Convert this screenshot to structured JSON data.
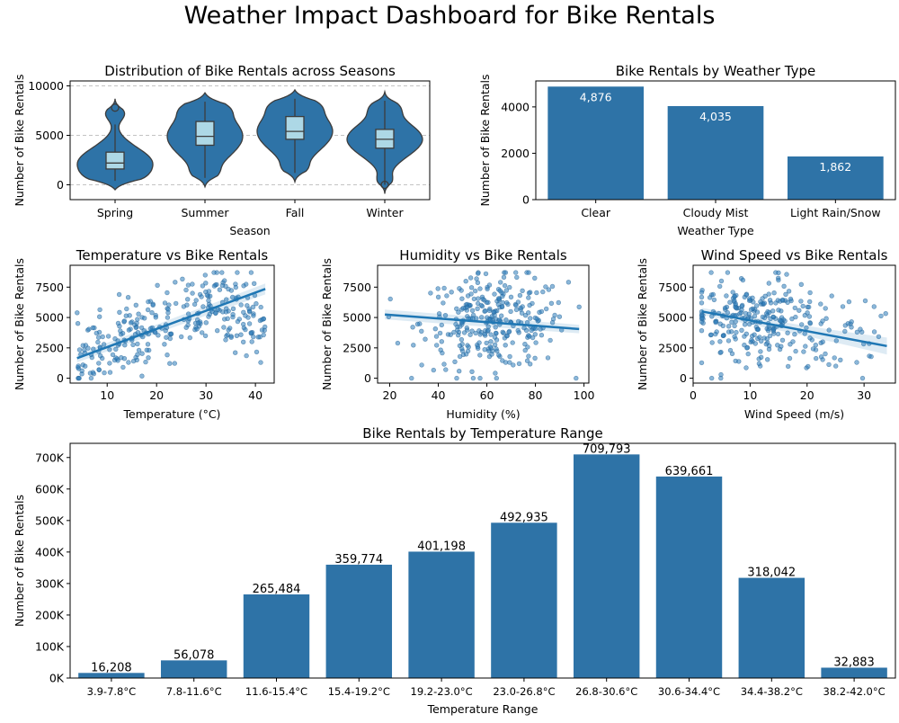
{
  "title": "Weather Impact Dashboard for Bike Rentals",
  "chart_data": [
    {
      "id": "seasons",
      "type": "violin",
      "title": "Distribution of Bike Rentals across Seasons",
      "xlabel": "Season",
      "ylabel": "Number of Bike Rentals",
      "categories": [
        "Spring",
        "Summer",
        "Fall",
        "Winter"
      ],
      "ylim": [
        -1500,
        10500
      ],
      "yticks": [
        0,
        5000,
        10000
      ],
      "grid": "y-dashed",
      "distributions": [
        {
          "name": "Spring",
          "min": 400,
          "q1": 1600,
          "median": 2200,
          "q3": 3300,
          "max": 7800,
          "whisker_high": 6100,
          "outliers": [
            7800
          ]
        },
        {
          "name": "Summer",
          "min": 700,
          "q1": 4000,
          "median": 4900,
          "q3": 6400,
          "max": 8400,
          "whisker_high": 8400,
          "outliers": []
        },
        {
          "name": "Fall",
          "min": 1200,
          "q1": 4600,
          "median": 5400,
          "q3": 6900,
          "max": 8700,
          "whisker_high": 8700,
          "outliers": []
        },
        {
          "name": "Winter",
          "min": 0,
          "q1": 3700,
          "median": 4600,
          "q3": 5600,
          "max": 8500,
          "whisker_high": 8500,
          "outliers": [
            0
          ]
        }
      ]
    },
    {
      "id": "weather",
      "type": "bar",
      "title": "Bike Rentals by Weather Type",
      "xlabel": "Weather Type",
      "ylabel": "Number of Bike Rentals",
      "categories": [
        "Clear",
        "Cloudy Mist",
        "Light Rain/Snow"
      ],
      "values": [
        4876,
        4035,
        1862
      ],
      "data_labels": [
        "4,876",
        "4,035",
        "1,862"
      ],
      "ylim": [
        0,
        5120
      ],
      "yticks": [
        0,
        2000,
        4000
      ]
    },
    {
      "id": "temperature",
      "type": "scatter",
      "title": "Temperature vs Bike Rentals",
      "xlabel": "Temperature (°C)",
      "ylabel": "Number of Bike Rentals",
      "xlim": [
        2.5,
        43.8
      ],
      "ylim": [
        -400,
        9300
      ],
      "xticks": [
        10,
        20,
        30,
        40
      ],
      "yticks": [
        0,
        2500,
        5000,
        7500
      ],
      "regression": {
        "x": [
          3.9,
          42.0
        ],
        "y": [
          1650,
          7350
        ],
        "ci_halfwidth": [
          350,
          450
        ]
      },
      "point_cloud": {
        "count": 300,
        "x_range": [
          3.9,
          42.0
        ],
        "y_range": [
          0,
          8700
        ],
        "shape": "rising",
        "peak": 31
      }
    },
    {
      "id": "humidity",
      "type": "scatter",
      "title": "Humidity vs Bike Rentals",
      "xlabel": "Humidity (%)",
      "ylabel": "Number of Bike Rentals",
      "xlim": [
        15,
        102
      ],
      "ylim": [
        -400,
        9300
      ],
      "xticks": [
        20,
        40,
        60,
        80,
        100
      ],
      "yticks": [
        0,
        2500,
        5000,
        7500
      ],
      "regression": {
        "x": [
          18,
          98
        ],
        "y": [
          5250,
          4050
        ],
        "ci_halfwidth": [
          400,
          350
        ]
      },
      "point_cloud": {
        "count": 300,
        "x_range": [
          18,
          98
        ],
        "y_range": [
          0,
          8700
        ],
        "shape": "flat",
        "center": 63
      }
    },
    {
      "id": "wind",
      "type": "scatter",
      "title": "Wind Speed vs Bike Rentals",
      "xlabel": "Wind Speed (m/s)",
      "ylabel": "Number of Bike Rentals",
      "xlim": [
        0,
        35.5
      ],
      "ylim": [
        -400,
        9300
      ],
      "xticks": [
        0,
        10,
        20,
        30
      ],
      "yticks": [
        0,
        2500,
        5000,
        7500
      ],
      "regression": {
        "x": [
          1.5,
          34.0
        ],
        "y": [
          5500,
          2650
        ],
        "ci_halfwidth": [
          300,
          700
        ]
      },
      "point_cloud": {
        "count": 300,
        "x_range": [
          1.5,
          34
        ],
        "y_range": [
          0,
          8700
        ],
        "shape": "skewed",
        "center": 11
      }
    },
    {
      "id": "temprange",
      "type": "bar",
      "title": "Bike Rentals by Temperature Range",
      "xlabel": "Temperature Range",
      "ylabel": "Number of Bike Rentals",
      "categories": [
        "3.9-7.8°C",
        "7.8-11.6°C",
        "11.6-15.4°C",
        "15.4-19.2°C",
        "19.2-23.0°C",
        "23.0-26.8°C",
        "26.8-30.6°C",
        "30.6-34.4°C",
        "34.4-38.2°C",
        "38.2-42.0°C"
      ],
      "values": [
        16208,
        56078,
        265484,
        359774,
        401198,
        492935,
        709793,
        639661,
        318042,
        32883
      ],
      "data_labels": [
        "16,208",
        "56,078",
        "265,484",
        "359,774",
        "401,198",
        "492,935",
        "709,793",
        "639,661",
        "318,042",
        "32,883"
      ],
      "ylim": [
        0,
        745000
      ],
      "yticks": [
        0,
        100000,
        200000,
        300000,
        400000,
        500000,
        600000,
        700000
      ],
      "ytick_labels": [
        "0K",
        "100K",
        "200K",
        "300K",
        "400K",
        "500K",
        "600K",
        "700K"
      ]
    }
  ]
}
